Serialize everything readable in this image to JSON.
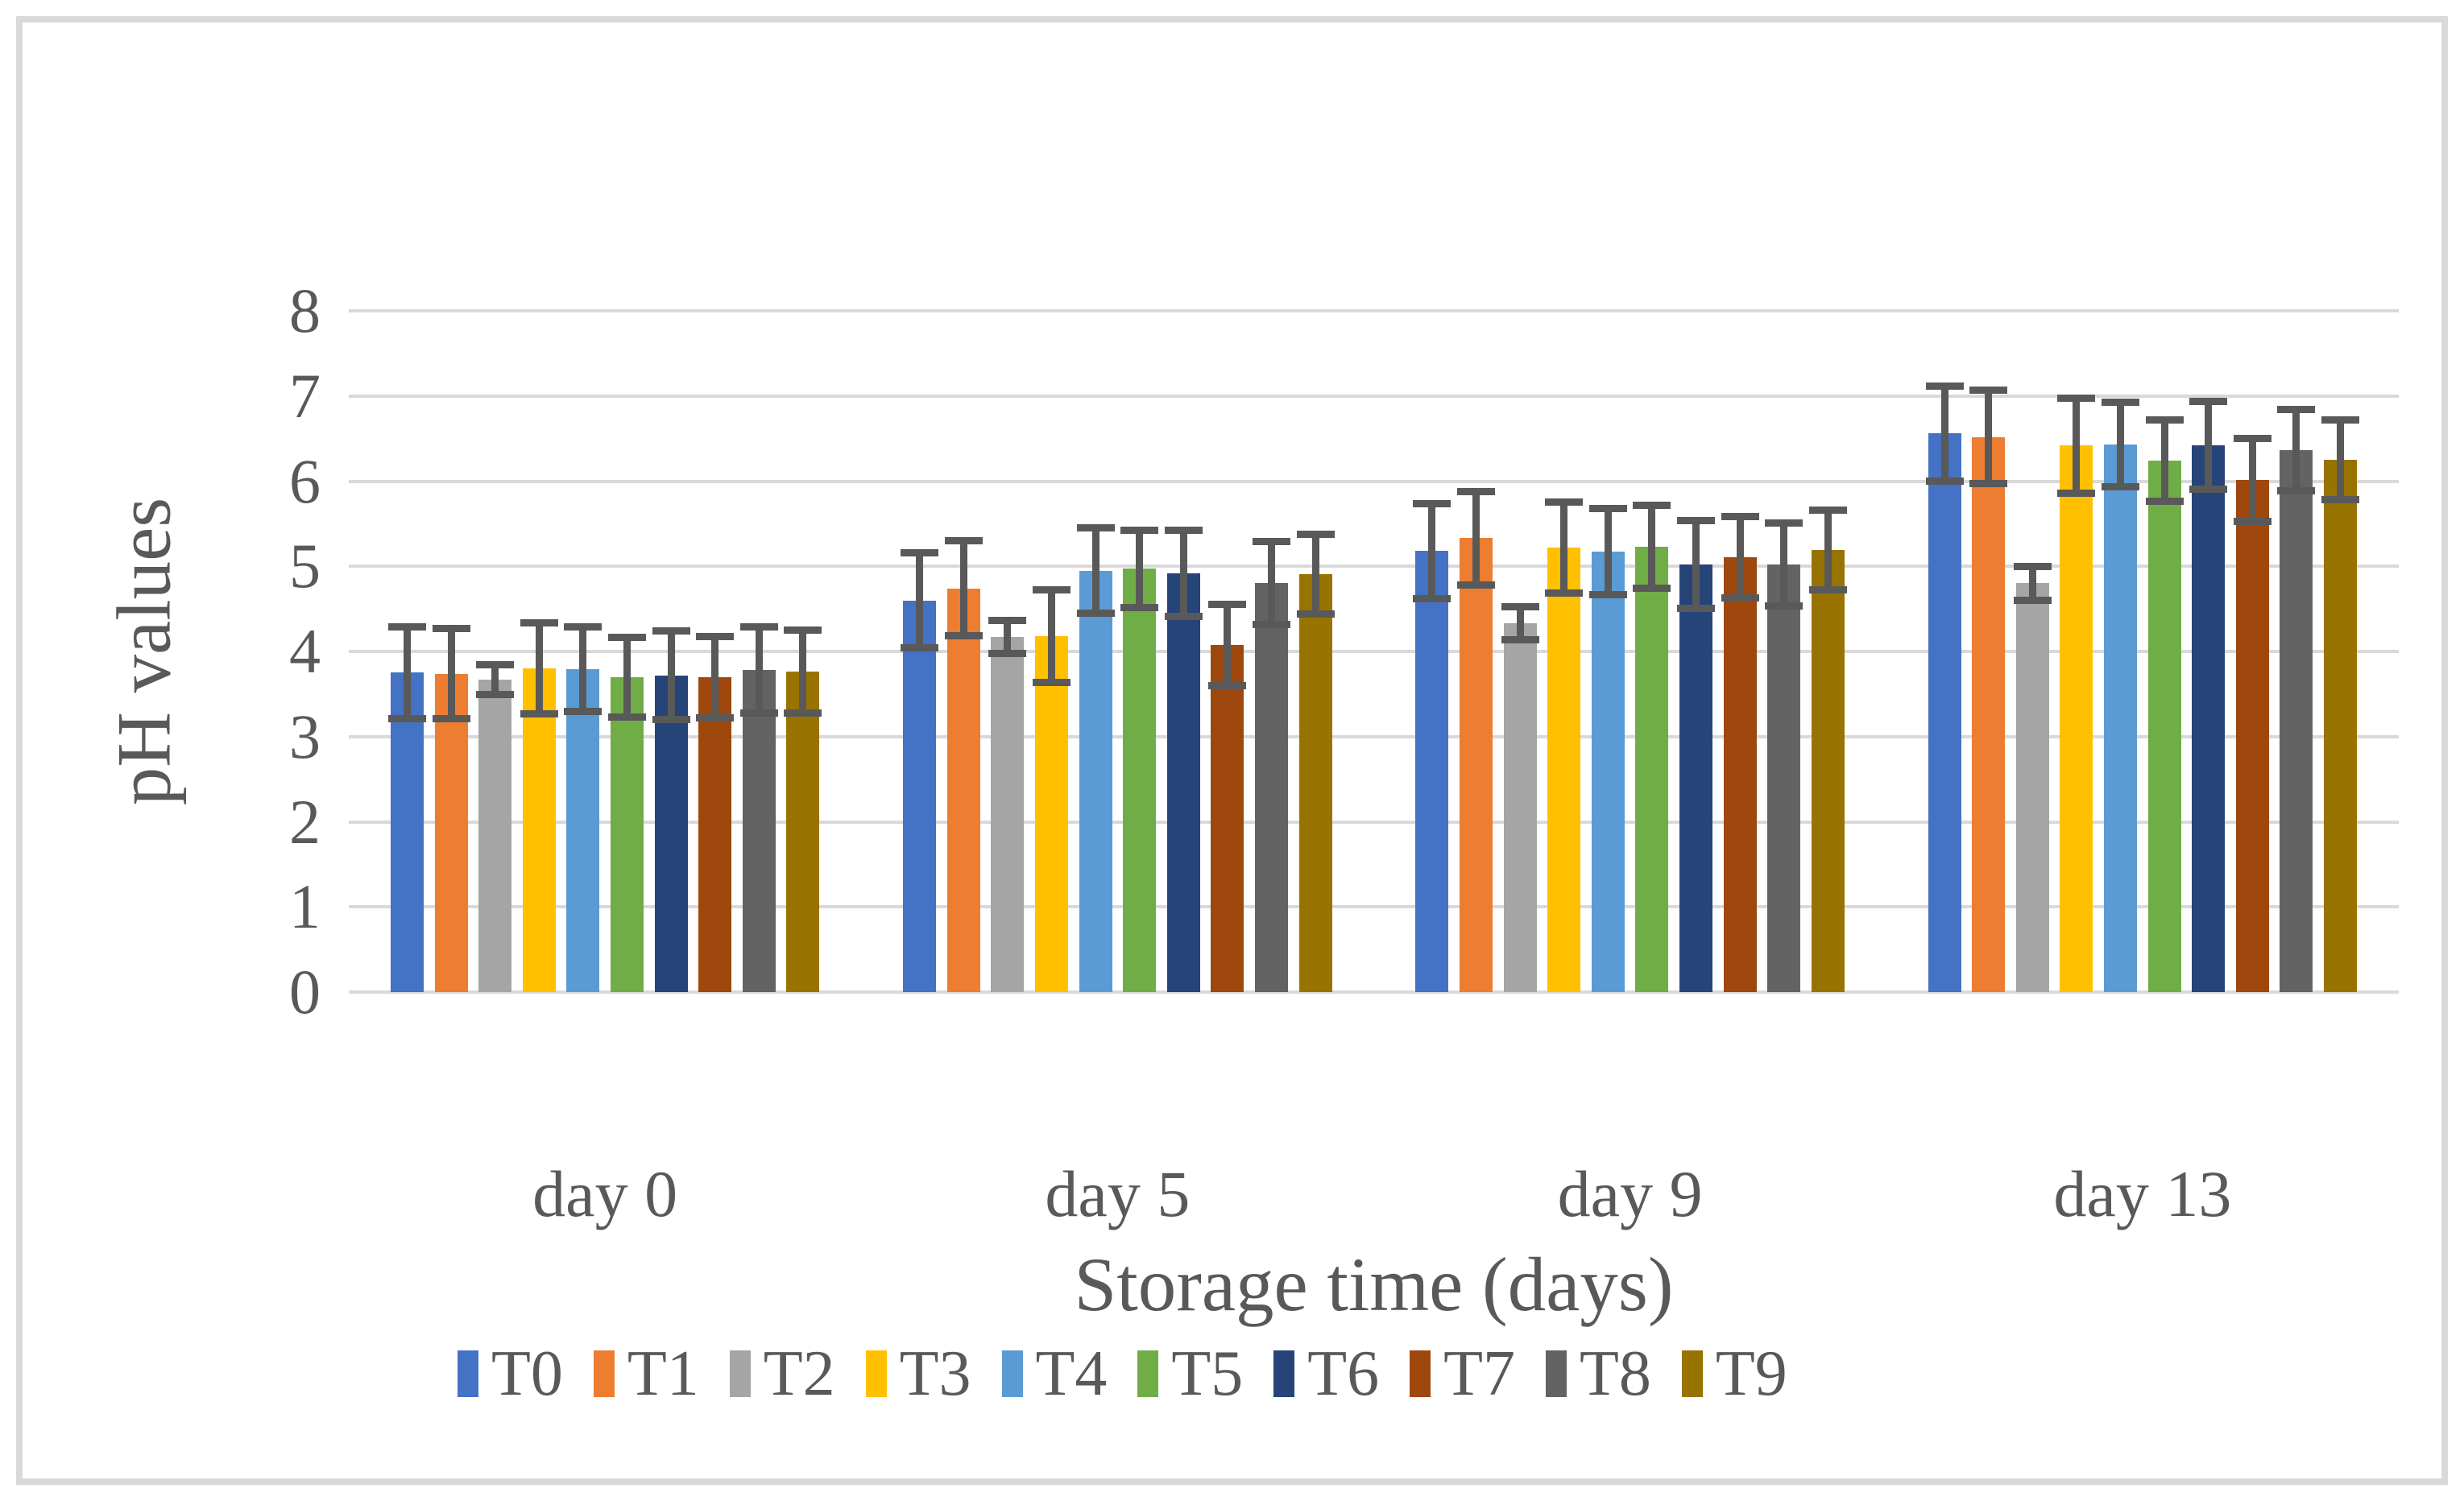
{
  "chart_data": {
    "type": "bar",
    "title": "",
    "xlabel": "Storage time (days)",
    "ylabel": "pH values",
    "categories": [
      "day 0",
      "day 5",
      "day 9",
      "day 13"
    ],
    "ylim": [
      0,
      8
    ],
    "ytick_step": 1,
    "yticks": [
      "0",
      "1",
      "2",
      "3",
      "4",
      "5",
      "6",
      "7",
      "8"
    ],
    "grid": "horizontal",
    "legend_position": "bottom",
    "gridline_color": "#D9D9D9",
    "frame_border_color": "#D9D9D9",
    "text_color": "#595959",
    "error_bar_color": "#595959",
    "series": [
      {
        "name": "T0",
        "color": "#4472C4",
        "values": [
          3.75,
          4.6,
          5.18,
          6.56
        ],
        "errors": [
          0.58,
          0.6,
          0.6,
          0.6
        ]
      },
      {
        "name": "T1",
        "color": "#ED7D31",
        "values": [
          3.74,
          4.74,
          5.33,
          6.52
        ],
        "errors": [
          0.57,
          0.6,
          0.59,
          0.59
        ]
      },
      {
        "name": "T2",
        "color": "#A5A5A5",
        "values": [
          3.67,
          4.17,
          4.33,
          4.8
        ],
        "errors": [
          0.22,
          0.24,
          0.24,
          0.24
        ]
      },
      {
        "name": "T3",
        "color": "#FFC000",
        "values": [
          3.8,
          4.18,
          5.22,
          6.42
        ],
        "errors": [
          0.58,
          0.59,
          0.58,
          0.6
        ]
      },
      {
        "name": "T4",
        "color": "#5B9BD5",
        "values": [
          3.79,
          4.95,
          5.17,
          6.43
        ],
        "errors": [
          0.54,
          0.54,
          0.55,
          0.54
        ]
      },
      {
        "name": "T5",
        "color": "#70AD47",
        "values": [
          3.7,
          4.97,
          5.23,
          6.24
        ],
        "errors": [
          0.51,
          0.5,
          0.53,
          0.52
        ]
      },
      {
        "name": "T6",
        "color": "#264478",
        "values": [
          3.72,
          4.92,
          5.02,
          6.42
        ],
        "errors": [
          0.56,
          0.55,
          0.56,
          0.56
        ]
      },
      {
        "name": "T7",
        "color": "#9E480E",
        "values": [
          3.7,
          4.08,
          5.11,
          6.01
        ],
        "errors": [
          0.52,
          0.52,
          0.52,
          0.53
        ]
      },
      {
        "name": "T8",
        "color": "#636363",
        "values": [
          3.78,
          4.8,
          5.02,
          6.36
        ],
        "errors": [
          0.55,
          0.53,
          0.53,
          0.52
        ]
      },
      {
        "name": "T9",
        "color": "#997300",
        "values": [
          3.76,
          4.91,
          5.19,
          6.25
        ],
        "errors": [
          0.53,
          0.51,
          0.51,
          0.51
        ]
      }
    ]
  }
}
